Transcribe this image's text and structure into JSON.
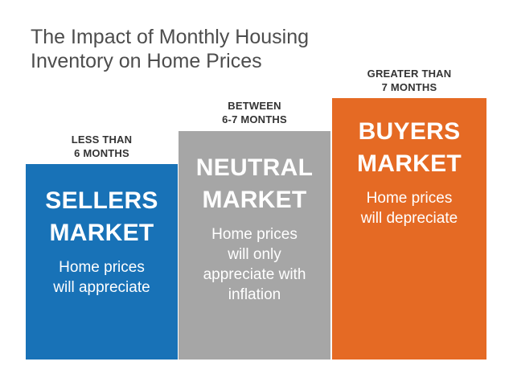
{
  "title": {
    "line1": "The Impact of Monthly Housing",
    "line2": "Inventory on Home Prices"
  },
  "columns": [
    {
      "range_line1": "LESS THAN",
      "range_line2": "6 MONTHS",
      "heading_line1": "SELLERS",
      "heading_line2": "MARKET",
      "desc_lines": [
        "Home prices",
        "will appreciate"
      ],
      "color": "#1872b7"
    },
    {
      "range_line1": "BETWEEN",
      "range_line2": "6-7 MONTHS",
      "heading_line1": "NEUTRAL",
      "heading_line2": "MARKET",
      "desc_lines": [
        "Home prices",
        "will only",
        "appreciate with",
        "inflation"
      ],
      "color": "#a6a6a6"
    },
    {
      "range_line1": "GREATER THAN",
      "range_line2": "7 MONTHS",
      "heading_line1": "BUYERS",
      "heading_line2": "MARKET",
      "desc_lines": [
        "Home prices",
        "will depreciate"
      ],
      "color": "#e56a24"
    }
  ]
}
